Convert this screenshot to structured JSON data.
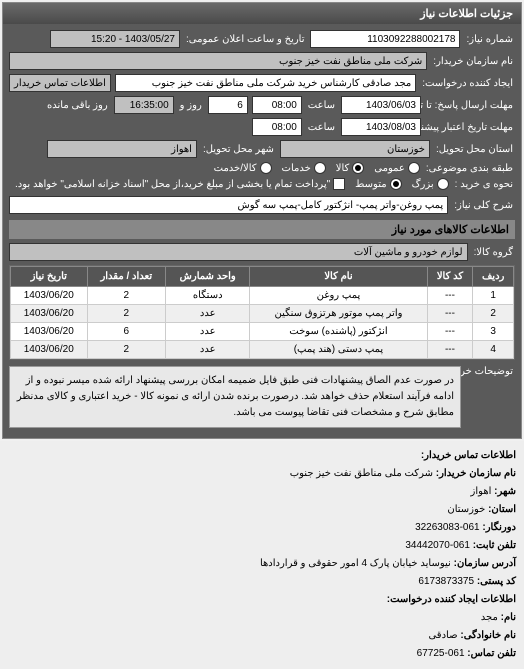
{
  "panel_title": "جزئیات اطلاعات نیاز",
  "request_number_label": "شماره نیاز:",
  "request_number": "1103092288002178",
  "announce_label": "تاریخ و ساعت اعلان عمومی:",
  "announce_value": "1403/05/27 - 15:20",
  "buyer_org_label": "نام سازمان خریدار:",
  "buyer_org": "شرکت ملی مناطق نفت خیز جنوب",
  "creator_label": "ایجاد کننده درخواست:",
  "creator": "مجد صادقی   کارشناس خرید  شرکت ملی مناطق نفت خیز جنوب",
  "contact_btn": "اطلاعات تماس خریدار",
  "deadline_send_label": "مهلت ارسال پاسخ: تا تاریخ:",
  "deadline_send_date": "1403/06/03",
  "time_label": "ساعت",
  "deadline_send_time": "08:00",
  "remaining_label": "روز باقی مانده",
  "remaining_days_and": "روز و",
  "remaining_days": "6",
  "remaining_time": "16:35:00",
  "validity_label": "مهلت تاریخ اعتبار پیشنهاد تا تاریخ:",
  "validity_date": "1403/08/03",
  "validity_time": "08:00",
  "region_label": "استان محل تحویل:",
  "region": "خوزستان",
  "city_label": "شهر محل تحویل:",
  "city": "اهواز",
  "budget_type_label": "طبقه بندی موضوعی:",
  "budget_omumi": "عمومی",
  "budget_kala": "کالا",
  "budget_khadamat": "خدمات",
  "pay_cash": "کالا/خدمت",
  "pay_type_label": "نحوه ی خرید :",
  "pay_naghdi": "بزرگ",
  "pay_etebari": "متوسط",
  "pay_note": "\"پرداخت تمام یا بخشی از مبلغ خرید،از محل \"اسناد خزانه اسلامی\" خواهد بود.",
  "need_title_label": "شرح کلی نیاز:",
  "need_title": "پمپ روغن-واتر پمپ- انژکتور کامل-پمپ سه گوش",
  "goods_section": "اطلاعات کالاهای مورد نیاز",
  "goods_group_label": "گروه کالا:",
  "goods_group": "لوازم خودرو و ماشین آلات",
  "table": {
    "headers": [
      "ردیف",
      "کد کالا",
      "نام کالا",
      "واحد شمارش",
      "تعداد / مقدار",
      "تاریخ نیاز"
    ],
    "rows": [
      [
        "1",
        "---",
        "پمپ روغن",
        "دستگاه",
        "2",
        "1403/06/20"
      ],
      [
        "2",
        "---",
        "واتر پمپ موتور هرتزوق سنگین",
        "عدد",
        "2",
        "1403/06/20"
      ],
      [
        "3",
        "---",
        "انژکتور (پاشنده) سوخت",
        "عدد",
        "6",
        "1403/06/20"
      ],
      [
        "4",
        "---",
        "پمپ دستی (هند پمپ)",
        "عدد",
        "2",
        "1403/06/20"
      ]
    ]
  },
  "note_label": "توضیحات خریدار:",
  "note_text": "در صورت عدم الصاق پیشنهادات فنی طبق فایل ضمیمه امکان بررسی پیشنهاد ارائه شده میسر نبوده و از ادامه فرآیند استعلام حذف خواهد شد. درصورت برنده شدن ارائه ی نمونه کالا - خرید اعتباری و کالای مدنظر مطابق شرح و مشخصات فنی تقاضا پیوست می باشد.",
  "contact_section": "اطلاعات تماس خریدار:",
  "c_org_label": "نام سازمان خریدار:",
  "c_org": "شرکت ملی مناطق نفت خیز جنوب",
  "c_city_label": "شهر:",
  "c_city": "اهواز",
  "c_province_label": "استان:",
  "c_province": "خوزستان",
  "c_fax_label": "دورنگار:",
  "c_fax": "061-32263083",
  "c_phone_label": "تلفن ثابت:",
  "c_phone": "061-34442070",
  "c_addr_label": "آدرس سازمان:",
  "c_addr": "نیوساید خیابان پارک 4 امور حقوقی و قراردادها",
  "c_post_label": "کد پستی:",
  "c_post": "6173873375",
  "c_creator_section": "اطلاعات ایجاد کننده درخواست:",
  "c_name_label": "نام:",
  "c_name": "مجد",
  "c_family_label": "نام خانوادگی:",
  "c_family": "صادقی",
  "c_tel_label": "تلفن تماس:",
  "c_tel": "061-67725"
}
